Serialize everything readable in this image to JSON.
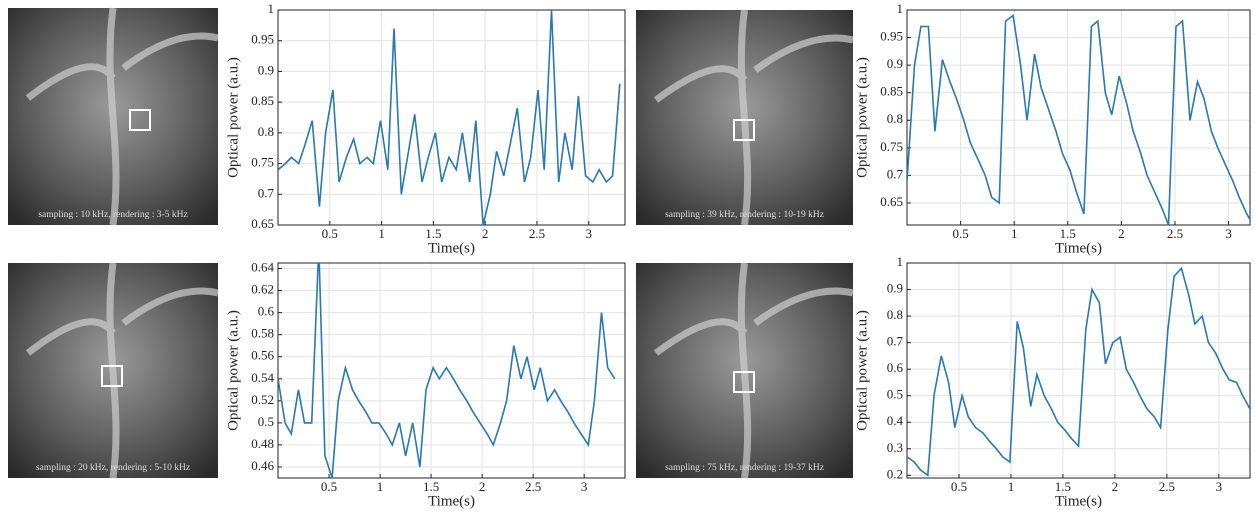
{
  "images": [
    {
      "caption": "sampling : 10 kHz, rendering : 3-5 kHz"
    },
    {
      "caption": "sampling : 39 kHz, rendering : 10-19 kHz"
    },
    {
      "caption": "sampling : 20 kHz, rendering : 5-10 kHz"
    },
    {
      "caption": "sampling : 75 kHz, rendering : 19-37 kHz"
    }
  ],
  "chart_data": [
    {
      "type": "line",
      "xlabel": "Time(s)",
      "ylabel": "Optical power (a.u.)",
      "color": "#2878b5",
      "grid": true,
      "xlim": [
        0,
        3.35
      ],
      "ylim": [
        0.65,
        1
      ],
      "xticks": [
        0.5,
        1,
        1.5,
        2,
        2.5,
        3
      ],
      "yticks": [
        0.65,
        0.7,
        0.75,
        0.8,
        0.85,
        0.9,
        0.95,
        1
      ],
      "x": [
        0,
        0.07,
        0.13,
        0.2,
        0.26,
        0.33,
        0.4,
        0.46,
        0.53,
        0.59,
        0.66,
        0.73,
        0.79,
        0.86,
        0.92,
        0.99,
        1.06,
        1.12,
        1.19,
        1.25,
        1.32,
        1.39,
        1.45,
        1.52,
        1.58,
        1.65,
        1.72,
        1.78,
        1.85,
        1.91,
        1.98,
        2.05,
        2.11,
        2.18,
        2.24,
        2.31,
        2.38,
        2.44,
        2.51,
        2.57,
        2.64,
        2.71,
        2.77,
        2.84,
        2.9,
        2.97,
        3.04,
        3.1,
        3.17,
        3.23,
        3.3
      ],
      "values": [
        0.74,
        0.75,
        0.76,
        0.75,
        0.78,
        0.82,
        0.68,
        0.8,
        0.87,
        0.72,
        0.76,
        0.79,
        0.75,
        0.76,
        0.75,
        0.82,
        0.74,
        0.97,
        0.7,
        0.76,
        0.83,
        0.72,
        0.76,
        0.8,
        0.72,
        0.76,
        0.74,
        0.8,
        0.72,
        0.82,
        0.65,
        0.7,
        0.77,
        0.73,
        0.78,
        0.84,
        0.72,
        0.76,
        0.87,
        0.74,
        1.0,
        0.72,
        0.8,
        0.74,
        0.86,
        0.73,
        0.72,
        0.74,
        0.72,
        0.73,
        0.88
      ]
    },
    {
      "type": "line",
      "xlabel": "Time(s)",
      "ylabel": "Optical power (a.u.)",
      "color": "#2878b5",
      "grid": true,
      "xlim": [
        0,
        3.2
      ],
      "ylim": [
        0.61,
        1
      ],
      "xticks": [
        0.5,
        1,
        1.5,
        2,
        2.5,
        3
      ],
      "yticks": [
        0.65,
        0.7,
        0.75,
        0.8,
        0.85,
        0.9,
        0.95,
        1
      ],
      "x": [
        0,
        0.07,
        0.13,
        0.2,
        0.26,
        0.33,
        0.4,
        0.46,
        0.53,
        0.59,
        0.66,
        0.73,
        0.79,
        0.86,
        0.92,
        0.99,
        1.06,
        1.12,
        1.19,
        1.25,
        1.32,
        1.39,
        1.45,
        1.52,
        1.58,
        1.65,
        1.72,
        1.78,
        1.85,
        1.91,
        1.98,
        2.05,
        2.11,
        2.18,
        2.24,
        2.31,
        2.38,
        2.44,
        2.51,
        2.57,
        2.64,
        2.71,
        2.77,
        2.84,
        2.9,
        2.97,
        3.04,
        3.1,
        3.17,
        3.23,
        3.3
      ],
      "values": [
        0.69,
        0.9,
        0.97,
        0.97,
        0.78,
        0.91,
        0.87,
        0.84,
        0.8,
        0.76,
        0.73,
        0.7,
        0.66,
        0.65,
        0.98,
        0.99,
        0.9,
        0.8,
        0.92,
        0.86,
        0.82,
        0.78,
        0.74,
        0.71,
        0.67,
        0.63,
        0.97,
        0.98,
        0.85,
        0.81,
        0.88,
        0.83,
        0.78,
        0.74,
        0.7,
        0.67,
        0.64,
        0.61,
        0.97,
        0.98,
        0.8,
        0.87,
        0.84,
        0.78,
        0.75,
        0.72,
        0.69,
        0.66,
        0.63,
        0.61,
        0.6
      ]
    },
    {
      "type": "line",
      "xlabel": "Time(s)",
      "ylabel": "Optical power (a.u.)",
      "color": "#2878b5",
      "grid": true,
      "xlim": [
        0,
        3.4
      ],
      "ylim": [
        0.45,
        0.645
      ],
      "xticks": [
        0.5,
        1,
        1.5,
        2,
        2.5,
        3
      ],
      "yticks": [
        0.46,
        0.48,
        0.5,
        0.52,
        0.54,
        0.56,
        0.58,
        0.6,
        0.62,
        0.64
      ],
      "x": [
        0,
        0.07,
        0.13,
        0.2,
        0.26,
        0.33,
        0.4,
        0.46,
        0.53,
        0.59,
        0.66,
        0.73,
        0.79,
        0.86,
        0.92,
        0.99,
        1.06,
        1.12,
        1.19,
        1.25,
        1.32,
        1.39,
        1.45,
        1.52,
        1.58,
        1.65,
        1.72,
        1.78,
        1.85,
        1.91,
        1.98,
        2.05,
        2.11,
        2.18,
        2.24,
        2.31,
        2.38,
        2.44,
        2.51,
        2.57,
        2.64,
        2.71,
        2.77,
        2.84,
        2.9,
        2.97,
        3.04,
        3.1,
        3.17,
        3.23,
        3.3
      ],
      "values": [
        0.54,
        0.5,
        0.49,
        0.53,
        0.5,
        0.5,
        0.66,
        0.47,
        0.45,
        0.52,
        0.55,
        0.53,
        0.52,
        0.51,
        0.5,
        0.5,
        0.49,
        0.48,
        0.5,
        0.47,
        0.5,
        0.46,
        0.53,
        0.55,
        0.54,
        0.55,
        0.54,
        0.53,
        0.52,
        0.51,
        0.5,
        0.49,
        0.48,
        0.5,
        0.52,
        0.57,
        0.54,
        0.56,
        0.53,
        0.55,
        0.52,
        0.53,
        0.52,
        0.51,
        0.5,
        0.49,
        0.48,
        0.52,
        0.6,
        0.55,
        0.54
      ]
    },
    {
      "type": "line",
      "xlabel": "Time(s)",
      "ylabel": "Optical power (a.u.)",
      "color": "#2878b5",
      "grid": true,
      "xlim": [
        0,
        3.3
      ],
      "ylim": [
        0.19,
        1
      ],
      "xticks": [
        0.5,
        1,
        1.5,
        2,
        2.5,
        3
      ],
      "yticks": [
        0.2,
        0.3,
        0.4,
        0.5,
        0.6,
        0.7,
        0.8,
        0.9,
        1
      ],
      "x": [
        0,
        0.07,
        0.13,
        0.2,
        0.26,
        0.33,
        0.4,
        0.46,
        0.53,
        0.59,
        0.66,
        0.73,
        0.79,
        0.86,
        0.92,
        0.99,
        1.06,
        1.12,
        1.19,
        1.25,
        1.32,
        1.39,
        1.45,
        1.52,
        1.58,
        1.65,
        1.72,
        1.78,
        1.85,
        1.91,
        1.98,
        2.05,
        2.11,
        2.18,
        2.24,
        2.31,
        2.38,
        2.44,
        2.51,
        2.57,
        2.64,
        2.71,
        2.77,
        2.84,
        2.9,
        2.97,
        3.04,
        3.1,
        3.17,
        3.23,
        3.3
      ],
      "values": [
        0.27,
        0.25,
        0.22,
        0.2,
        0.5,
        0.65,
        0.55,
        0.38,
        0.5,
        0.42,
        0.38,
        0.36,
        0.33,
        0.3,
        0.27,
        0.25,
        0.78,
        0.68,
        0.46,
        0.58,
        0.5,
        0.45,
        0.4,
        0.37,
        0.34,
        0.31,
        0.75,
        0.9,
        0.85,
        0.62,
        0.7,
        0.72,
        0.6,
        0.55,
        0.5,
        0.45,
        0.42,
        0.38,
        0.75,
        0.95,
        0.98,
        0.88,
        0.77,
        0.8,
        0.7,
        0.66,
        0.6,
        0.56,
        0.55,
        0.5,
        0.45
      ]
    }
  ]
}
